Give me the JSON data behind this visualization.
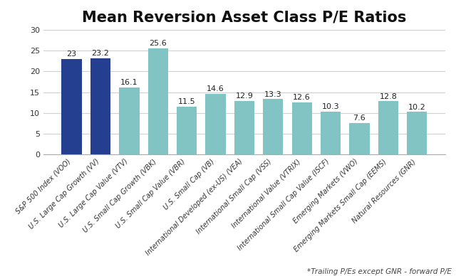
{
  "title": "Mean Reversion Asset Class P/E Ratios",
  "categories": [
    "S&P 500 Index (VOO)",
    "U.S. Large Cap Growth (VV)",
    "U.S. Large Cap Value (VTV)",
    "U.S. Small Cap Growth (VBK)",
    "U.S. Small Cap Value (VBR)",
    "U.S. Small Cap (VB)",
    "International Developed (ex-US) (VEA)",
    "International Small Cap (VSS)",
    "International Value (VTRIX)",
    "International Small Cap Value (ISCF)",
    "Emerging Markets (VWO)",
    "Emerging Markets Small Cap (EEMS)",
    "Natural Resources (GNR)"
  ],
  "values": [
    23,
    23.2,
    16.1,
    25.6,
    11.5,
    14.6,
    12.9,
    13.3,
    12.6,
    10.3,
    7.6,
    12.8,
    10.2
  ],
  "value_labels": [
    "23",
    "23.2",
    "16.1",
    "25.6",
    "11.5",
    "14.6",
    "12.9",
    "13.3",
    "12.6",
    "10.3",
    "7.6",
    "12.8",
    "10.2"
  ],
  "bar_colors": [
    "#243f8f",
    "#243f8f",
    "#82c4c3",
    "#82c4c3",
    "#82c4c3",
    "#82c4c3",
    "#82c4c3",
    "#82c4c3",
    "#82c4c3",
    "#82c4c3",
    "#82c4c3",
    "#82c4c3",
    "#82c4c3"
  ],
  "ylim": [
    0,
    30
  ],
  "yticks": [
    0,
    5,
    10,
    15,
    20,
    25,
    30
  ],
  "footnote": "*Trailing P/Es except GNR - forward P/E",
  "background_color": "#ffffff",
  "title_fontsize": 15,
  "label_fontsize": 8,
  "tick_fontsize": 7,
  "footnote_fontsize": 7.5
}
